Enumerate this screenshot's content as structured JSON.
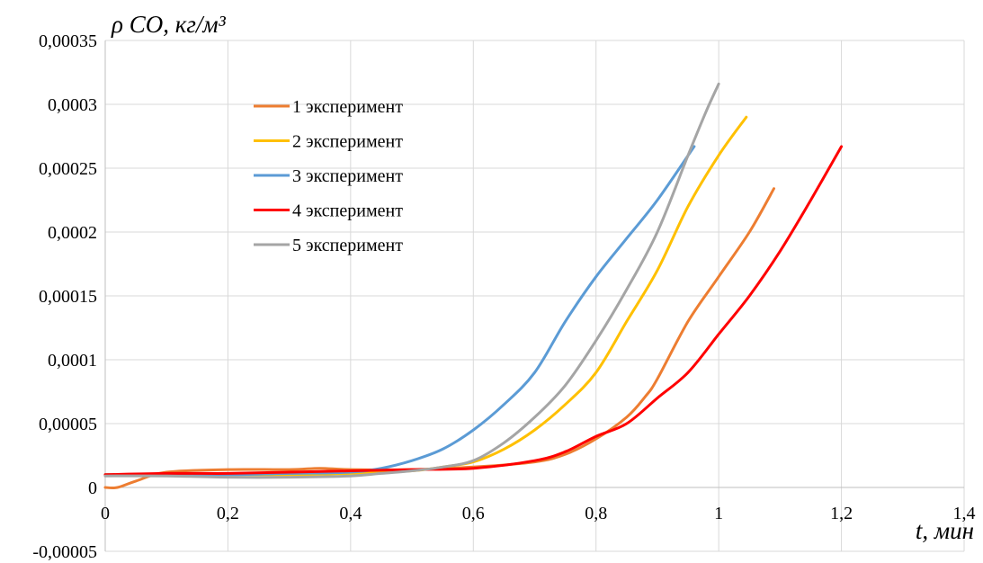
{
  "chart_data": {
    "type": "line",
    "xlabel": "t, мин",
    "ylabel": "ρ CO, кг/м³",
    "xlim": [
      0,
      1.4
    ],
    "ylim": [
      -5e-05,
      0.00035
    ],
    "x_ticks": [
      0,
      0.2,
      0.4,
      0.6,
      0.8,
      1,
      1.2,
      1.4
    ],
    "x_tick_labels": [
      "0",
      "0,2",
      "0,4",
      "0,6",
      "0,8",
      "1",
      "1,2",
      "1,4"
    ],
    "y_ticks": [
      -5e-05,
      0,
      5e-05,
      0.0001,
      0.00015,
      0.0002,
      0.00025,
      0.0003,
      0.00035
    ],
    "y_tick_labels": [
      "-0,00005",
      "0",
      "0,00005",
      "0,0001",
      "0,00015",
      "0,0002",
      "0,00025",
      "0,0003",
      "0,00035"
    ],
    "grid": true,
    "legend_position": "top-left-inside",
    "series": [
      {
        "name": "1 эксперимент",
        "color": "#ed7d31",
        "points": [
          [
            0,
            0
          ],
          [
            0.02,
            0
          ],
          [
            0.05,
            5e-06
          ],
          [
            0.1,
            1.2e-05
          ],
          [
            0.2,
            1.4e-05
          ],
          [
            0.3,
            1.4e-05
          ],
          [
            0.35,
            1.5e-05
          ],
          [
            0.4,
            1.4e-05
          ],
          [
            0.5,
            1.4e-05
          ],
          [
            0.6,
            1.6e-05
          ],
          [
            0.7,
            2e-05
          ],
          [
            0.75,
            2.6e-05
          ],
          [
            0.8,
            3.8e-05
          ],
          [
            0.85,
            5.5e-05
          ],
          [
            0.88,
            7.1e-05
          ],
          [
            0.9,
            8.5e-05
          ],
          [
            0.95,
            0.00013
          ],
          [
            1,
            0.000165
          ],
          [
            1.05,
            0.0002
          ],
          [
            1.09,
            0.000234
          ]
        ]
      },
      {
        "name": "2 эксперимент",
        "color": "#ffc000",
        "points": [
          [
            0,
            1e-05
          ],
          [
            0.1,
            1e-05
          ],
          [
            0.2,
            1e-05
          ],
          [
            0.3,
            1e-05
          ],
          [
            0.4,
            1.1e-05
          ],
          [
            0.5,
            1.3e-05
          ],
          [
            0.55,
            1.6e-05
          ],
          [
            0.6,
            2e-05
          ],
          [
            0.65,
            3e-05
          ],
          [
            0.7,
            4.5e-05
          ],
          [
            0.75,
            6.5e-05
          ],
          [
            0.8,
            9e-05
          ],
          [
            0.85,
            0.00013
          ],
          [
            0.9,
            0.00017
          ],
          [
            0.95,
            0.00022
          ],
          [
            1,
            0.00026
          ],
          [
            1.045,
            0.00029
          ]
        ]
      },
      {
        "name": "3 эксперимент",
        "color": "#5b9bd5",
        "points": [
          [
            0,
            1e-05
          ],
          [
            0.1,
            1e-05
          ],
          [
            0.2,
            1e-05
          ],
          [
            0.3,
            1.1e-05
          ],
          [
            0.4,
            1.2e-05
          ],
          [
            0.45,
            1.5e-05
          ],
          [
            0.5,
            2.1e-05
          ],
          [
            0.55,
            3e-05
          ],
          [
            0.6,
            4.5e-05
          ],
          [
            0.65,
            6.5e-05
          ],
          [
            0.7,
            9e-05
          ],
          [
            0.75,
            0.00013
          ],
          [
            0.8,
            0.000165
          ],
          [
            0.85,
            0.000195
          ],
          [
            0.9,
            0.000225
          ],
          [
            0.96,
            0.000267
          ]
        ]
      },
      {
        "name": "4 эксперимент",
        "color": "#ff0000",
        "points": [
          [
            0,
            1e-05
          ],
          [
            0.1,
            1.1e-05
          ],
          [
            0.2,
            1.1e-05
          ],
          [
            0.3,
            1.2e-05
          ],
          [
            0.4,
            1.3e-05
          ],
          [
            0.5,
            1.4e-05
          ],
          [
            0.6,
            1.5e-05
          ],
          [
            0.7,
            2.1e-05
          ],
          [
            0.75,
            2.8e-05
          ],
          [
            0.8,
            4e-05
          ],
          [
            0.85,
            5e-05
          ],
          [
            0.9,
            7e-05
          ],
          [
            0.95,
            9e-05
          ],
          [
            1,
            0.00012
          ],
          [
            1.05,
            0.00015
          ],
          [
            1.1,
            0.000185
          ],
          [
            1.15,
            0.000225
          ],
          [
            1.2,
            0.000267
          ]
        ]
      },
      {
        "name": "5 эксперимент",
        "color": "#a5a5a5",
        "points": [
          [
            0,
            9e-06
          ],
          [
            0.1,
            9e-06
          ],
          [
            0.2,
            8e-06
          ],
          [
            0.3,
            8e-06
          ],
          [
            0.4,
            9e-06
          ],
          [
            0.45,
            1.1e-05
          ],
          [
            0.5,
            1.3e-05
          ],
          [
            0.55,
            1.6e-05
          ],
          [
            0.6,
            2.1e-05
          ],
          [
            0.65,
            3.5e-05
          ],
          [
            0.7,
            5.5e-05
          ],
          [
            0.75,
            8e-05
          ],
          [
            0.8,
            0.000115
          ],
          [
            0.85,
            0.000155
          ],
          [
            0.9,
            0.0002
          ],
          [
            0.95,
            0.00026
          ],
          [
            0.98,
            0.000295
          ],
          [
            1,
            0.000316
          ]
        ]
      }
    ]
  }
}
